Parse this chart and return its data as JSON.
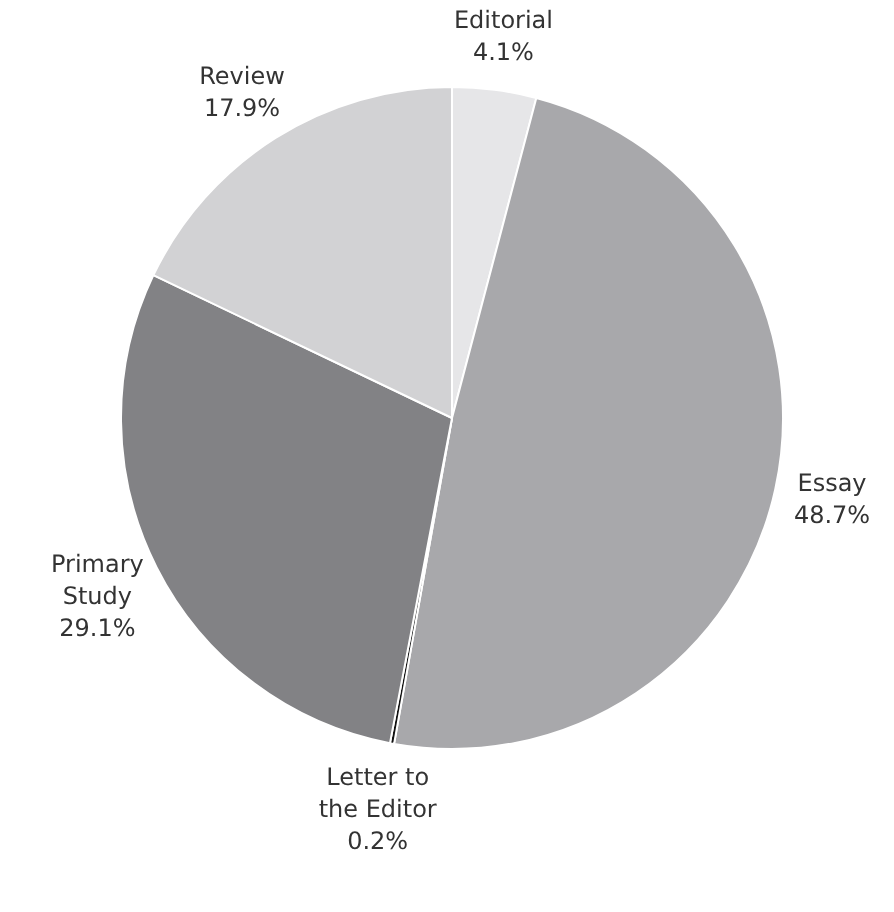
{
  "chart_data": {
    "type": "pie",
    "categories": [
      "Editorial",
      "Essay",
      "Letter to the Editor",
      "Primary Study",
      "Review"
    ],
    "values": [
      4.1,
      48.7,
      0.2,
      29.1,
      17.9
    ],
    "value_labels": [
      "4.1%",
      "48.7%",
      "0.2%",
      "29.1%",
      "17.9%"
    ],
    "colors": [
      "#e6e6e8",
      "#a8a8ab",
      "#111111",
      "#828285",
      "#d2d2d4"
    ],
    "legend": false
  }
}
